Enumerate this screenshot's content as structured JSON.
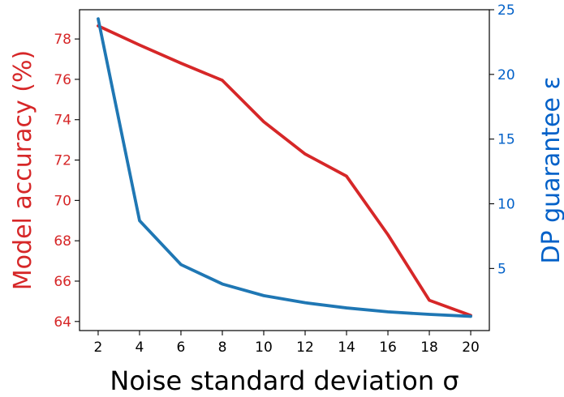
{
  "chart_data": {
    "type": "line",
    "x": [
      2,
      4,
      6,
      8,
      10,
      12,
      14,
      16,
      18,
      20
    ],
    "xlabel": "Noise standard deviation σ",
    "xlim": [
      1.1,
      20.9
    ],
    "xticks": [
      2,
      4,
      6,
      8,
      10,
      12,
      14,
      16,
      18,
      20
    ],
    "ylabel_left": "Model accuracy (%)",
    "ylim_left": [
      63.55,
      79.45
    ],
    "yticks_left": [
      64,
      66,
      68,
      70,
      72,
      74,
      76,
      78
    ],
    "ylabel_right": "DP guarantee ε",
    "ylim_right": [
      0.2,
      25
    ],
    "yticks_right": [
      5,
      10,
      15,
      20,
      25
    ],
    "grid": false,
    "series": [
      {
        "axis": "left",
        "color": "#d62728",
        "values": [
          78.65,
          77.7,
          76.8,
          75.95,
          73.9,
          72.3,
          71.2,
          68.3,
          65.05,
          64.3
        ]
      },
      {
        "axis": "right",
        "color": "#1f77b4",
        "values": [
          24.3,
          8.7,
          5.3,
          3.8,
          2.9,
          2.35,
          1.95,
          1.65,
          1.45,
          1.3
        ]
      }
    ],
    "colors": {
      "left_axis": "#d62728",
      "right_axis": "#0060c8"
    }
  }
}
